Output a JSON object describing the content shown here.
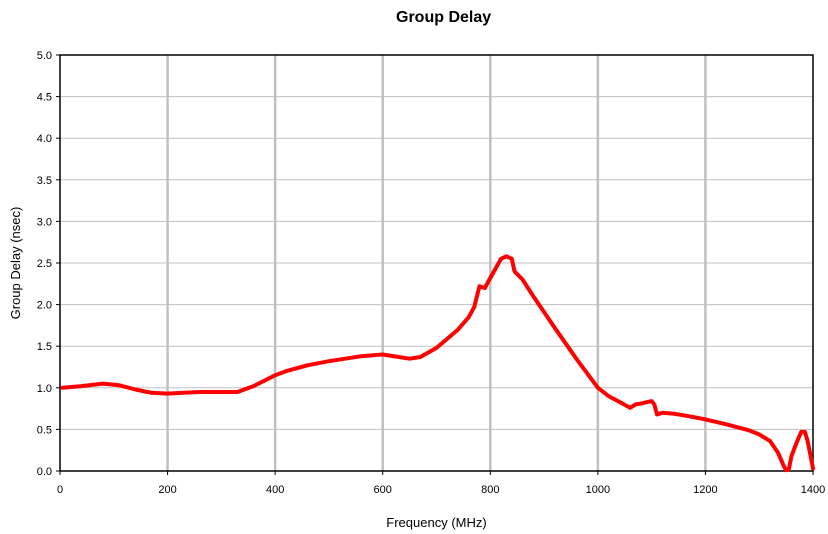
{
  "chart_data": {
    "type": "line",
    "title": "Group Delay",
    "xlabel": "Frequency (MHz)",
    "ylabel": "Group Delay (nsec)",
    "xlim": [
      0,
      1400
    ],
    "ylim": [
      0,
      5
    ],
    "x_ticks": [
      "0",
      "200",
      "400",
      "600",
      "800",
      "1000",
      "1200",
      "1400"
    ],
    "y_ticks": [
      "0.0",
      "0.5",
      "1.0",
      "1.5",
      "2.0",
      "2.5",
      "3.0",
      "3.5",
      "4.0",
      "4.5",
      "5.0"
    ],
    "grid": {
      "vertical": true,
      "horizontal": true
    },
    "series_color": "#ff0000",
    "x": [
      5,
      40,
      80,
      110,
      140,
      170,
      200,
      230,
      260,
      300,
      330,
      360,
      400,
      420,
      460,
      500,
      560,
      600,
      630,
      650,
      670,
      700,
      740,
      760,
      770,
      780,
      790,
      800,
      820,
      830,
      840,
      845,
      860,
      880,
      920,
      960,
      1000,
      1020,
      1040,
      1060,
      1070,
      1080,
      1100,
      1105,
      1110,
      1120,
      1140,
      1160,
      1200,
      1240,
      1280,
      1300,
      1320,
      1335,
      1345,
      1350,
      1355,
      1360,
      1370,
      1378,
      1385,
      1390,
      1395,
      1400
    ],
    "y": [
      1.0,
      1.02,
      1.05,
      1.03,
      0.98,
      0.94,
      0.93,
      0.94,
      0.95,
      0.95,
      0.95,
      1.02,
      1.15,
      1.2,
      1.27,
      1.32,
      1.38,
      1.4,
      1.37,
      1.35,
      1.37,
      1.48,
      1.7,
      1.85,
      1.97,
      2.22,
      2.2,
      2.32,
      2.55,
      2.58,
      2.55,
      2.4,
      2.3,
      2.1,
      1.72,
      1.35,
      1.0,
      0.9,
      0.83,
      0.76,
      0.8,
      0.81,
      0.84,
      0.8,
      0.68,
      0.7,
      0.69,
      0.67,
      0.62,
      0.56,
      0.49,
      0.44,
      0.36,
      0.22,
      0.07,
      0.01,
      0.02,
      0.18,
      0.35,
      0.47,
      0.47,
      0.36,
      0.2,
      0.03
    ]
  }
}
